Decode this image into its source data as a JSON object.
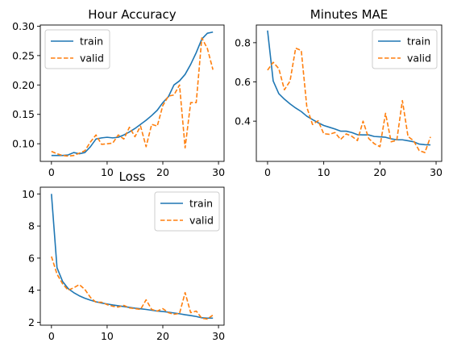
{
  "colors": {
    "train": "#1f77b4",
    "valid": "#ff7f0e",
    "axis": "#000000",
    "legend_border": "#cccccc"
  },
  "chart_data": [
    {
      "type": "line",
      "title": "Hour Accuracy",
      "xlabel": "",
      "ylabel": "",
      "xlim": [
        -2,
        31
      ],
      "ylim": [
        0.07,
        0.302
      ],
      "xticks": [
        0,
        10,
        20,
        30
      ],
      "yticks": [
        0.1,
        0.15,
        0.2,
        0.25,
        0.3
      ],
      "ytick_labels": [
        "0.10",
        "0.15",
        "0.20",
        "0.25",
        "0.30"
      ],
      "legend_position": "top-left",
      "x": [
        0,
        1,
        2,
        3,
        4,
        5,
        6,
        7,
        8,
        9,
        10,
        11,
        12,
        13,
        14,
        15,
        16,
        17,
        18,
        19,
        20,
        21,
        22,
        23,
        24,
        25,
        26,
        27,
        28,
        29
      ],
      "series": [
        {
          "name": "train",
          "style": "solid",
          "values": [
            0.08,
            0.08,
            0.08,
            0.081,
            0.085,
            0.083,
            0.085,
            0.095,
            0.108,
            0.11,
            0.111,
            0.11,
            0.111,
            0.115,
            0.12,
            0.126,
            0.133,
            0.14,
            0.148,
            0.157,
            0.17,
            0.18,
            0.2,
            0.207,
            0.218,
            0.235,
            0.255,
            0.278,
            0.288,
            0.29
          ]
        },
        {
          "name": "valid",
          "style": "dashed",
          "values": [
            0.087,
            0.083,
            0.08,
            0.079,
            0.08,
            0.084,
            0.088,
            0.103,
            0.115,
            0.099,
            0.1,
            0.101,
            0.115,
            0.108,
            0.128,
            0.112,
            0.13,
            0.095,
            0.133,
            0.13,
            0.165,
            0.181,
            0.183,
            0.2,
            0.093,
            0.17,
            0.17,
            0.28,
            0.262,
            0.226
          ]
        }
      ]
    },
    {
      "type": "line",
      "title": "Minutes MAE",
      "xlabel": "",
      "ylabel": "",
      "xlim": [
        -2,
        31
      ],
      "ylim": [
        0.195,
        0.89
      ],
      "xticks": [
        0,
        10,
        20,
        30
      ],
      "yticks": [
        0.4,
        0.6,
        0.8
      ],
      "ytick_labels": [
        "0.4",
        "0.6",
        "0.8"
      ],
      "legend_position": "top-right",
      "x": [
        0,
        1,
        2,
        3,
        4,
        5,
        6,
        7,
        8,
        9,
        10,
        11,
        12,
        13,
        14,
        15,
        16,
        17,
        18,
        19,
        20,
        21,
        22,
        23,
        24,
        25,
        26,
        27,
        28,
        29
      ],
      "series": [
        {
          "name": "train",
          "style": "solid",
          "values": [
            0.862,
            0.605,
            0.54,
            0.512,
            0.488,
            0.467,
            0.449,
            0.425,
            0.408,
            0.392,
            0.378,
            0.369,
            0.36,
            0.349,
            0.349,
            0.342,
            0.331,
            0.33,
            0.33,
            0.322,
            0.32,
            0.318,
            0.31,
            0.305,
            0.305,
            0.3,
            0.295,
            0.283,
            0.28,
            0.279
          ]
        },
        {
          "name": "valid",
          "style": "dashed",
          "values": [
            0.66,
            0.7,
            0.668,
            0.56,
            0.604,
            0.772,
            0.76,
            0.47,
            0.383,
            0.402,
            0.336,
            0.333,
            0.342,
            0.307,
            0.335,
            0.323,
            0.301,
            0.4,
            0.312,
            0.285,
            0.27,
            0.44,
            0.295,
            0.302,
            0.505,
            0.322,
            0.3,
            0.25,
            0.24,
            0.32
          ]
        }
      ]
    },
    {
      "type": "line",
      "title": "Loss",
      "xlabel": "",
      "ylabel": "",
      "xlim": [
        -2,
        31
      ],
      "ylim": [
        1.82,
        10.42
      ],
      "xticks": [
        0,
        10,
        20,
        30
      ],
      "yticks": [
        2,
        4,
        6,
        8,
        10
      ],
      "ytick_labels": [
        "2",
        "4",
        "6",
        "8",
        "10"
      ],
      "legend_position": "top-right",
      "x": [
        0,
        1,
        2,
        3,
        4,
        5,
        6,
        7,
        8,
        9,
        10,
        11,
        12,
        13,
        14,
        15,
        16,
        17,
        18,
        19,
        20,
        21,
        22,
        23,
        24,
        25,
        26,
        27,
        28,
        29
      ],
      "series": [
        {
          "name": "train",
          "style": "solid",
          "values": [
            10.0,
            5.4,
            4.55,
            4.1,
            3.85,
            3.65,
            3.5,
            3.38,
            3.28,
            3.2,
            3.14,
            3.08,
            3.03,
            2.98,
            2.93,
            2.88,
            2.84,
            2.8,
            2.75,
            2.7,
            2.67,
            2.63,
            2.58,
            2.53,
            2.47,
            2.42,
            2.36,
            2.28,
            2.26,
            2.26
          ]
        },
        {
          "name": "valid",
          "style": "dashed",
          "values": [
            6.1,
            5.0,
            4.4,
            4.0,
            4.15,
            4.35,
            4.05,
            3.55,
            3.25,
            3.25,
            3.1,
            3.0,
            2.95,
            3.05,
            2.9,
            2.85,
            2.8,
            3.4,
            2.8,
            2.7,
            2.85,
            2.6,
            2.5,
            2.55,
            3.85,
            2.6,
            2.7,
            2.25,
            2.2,
            2.45
          ]
        }
      ]
    }
  ]
}
